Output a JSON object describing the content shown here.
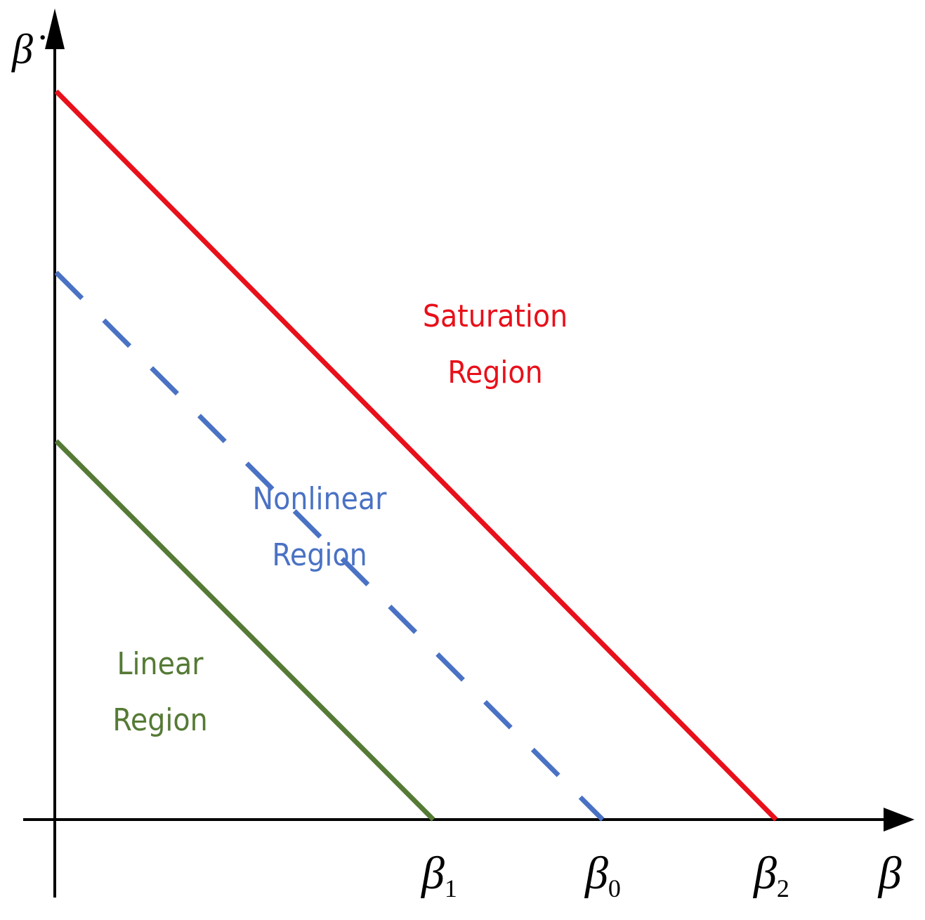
{
  "axes": {
    "y_label": "β̇",
    "x_label": "β"
  },
  "intercepts": [
    {
      "symbol": "β",
      "subscript": "1"
    },
    {
      "symbol": "β",
      "subscript": "0"
    },
    {
      "symbol": "β",
      "subscript": "2"
    }
  ],
  "regions": [
    {
      "lines": [
        "Saturation",
        "Region"
      ]
    },
    {
      "lines": [
        "Nonlinear",
        "Region"
      ]
    },
    {
      "lines": [
        "Linear",
        "Region"
      ]
    }
  ]
}
